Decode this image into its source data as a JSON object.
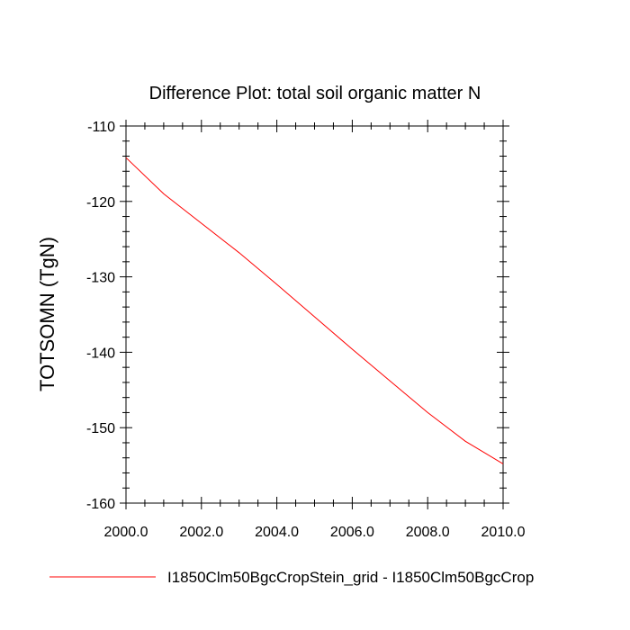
{
  "chart_data": {
    "type": "line",
    "title": "Difference Plot: total soil organic matter N",
    "xlabel": "",
    "ylabel": "TOTSOMN  (TgN)",
    "xlim": [
      2000,
      2010
    ],
    "ylim": [
      -160,
      -110
    ],
    "xticks": [
      2000,
      2002,
      2004,
      2006,
      2008,
      2010
    ],
    "xtick_labels": [
      "2000.0",
      "2002.0",
      "2004.0",
      "2006.0",
      "2008.0",
      "2010.0"
    ],
    "yticks": [
      -160,
      -150,
      -140,
      -130,
      -120,
      -110
    ],
    "ytick_labels": [
      "-160",
      "-150",
      "-140",
      "-130",
      "-120",
      "-110"
    ],
    "grid": false,
    "legend_position": "bottom",
    "series": [
      {
        "name": "I1850Clm50BgcCropStein_grid - I1850Clm50BgcCrop",
        "color": "#ff0000",
        "x": [
          2000,
          2001,
          2002,
          2003,
          2004,
          2005,
          2006,
          2007,
          2008,
          2009,
          2010
        ],
        "y": [
          -114.2,
          -119.0,
          -122.9,
          -126.8,
          -131.0,
          -135.3,
          -139.6,
          -143.8,
          -148.0,
          -151.8,
          -154.8
        ]
      }
    ]
  }
}
